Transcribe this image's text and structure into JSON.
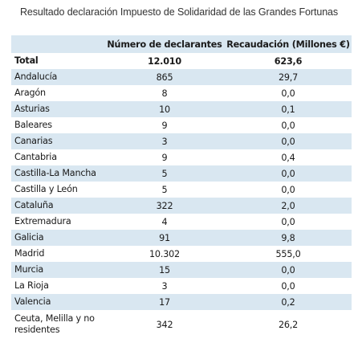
{
  "title": "Resultado declaración Impuesto de Solidaridad de las Grandes Fortunas",
  "table": {
    "headers": {
      "region": "",
      "declarantes": "Número de declarantes",
      "recaudacion": "Recaudación (Millones €)"
    },
    "total": {
      "region": "Total",
      "declarantes": "12.010",
      "recaudacion": "623,6"
    },
    "rows": [
      {
        "region": "Andalucía",
        "declarantes": "865",
        "recaudacion": "29,7"
      },
      {
        "region": "Aragón",
        "declarantes": "8",
        "recaudacion": "0,0"
      },
      {
        "region": "Asturias",
        "declarantes": "10",
        "recaudacion": "0,1"
      },
      {
        "region": "Baleares",
        "declarantes": "9",
        "recaudacion": "0,0"
      },
      {
        "region": "Canarias",
        "declarantes": "3",
        "recaudacion": "0,0"
      },
      {
        "region": "Cantabria",
        "declarantes": "9",
        "recaudacion": "0,4"
      },
      {
        "region": "Castilla-La Mancha",
        "declarantes": "5",
        "recaudacion": "0,0"
      },
      {
        "region": "Castilla y León",
        "declarantes": "5",
        "recaudacion": "0,0"
      },
      {
        "region": "Cataluña",
        "declarantes": "322",
        "recaudacion": "2,0"
      },
      {
        "region": "Extremadura",
        "declarantes": "4",
        "recaudacion": "0,0"
      },
      {
        "region": "Galicia",
        "declarantes": "91",
        "recaudacion": "9,8"
      },
      {
        "region": "Madrid",
        "declarantes": "10.302",
        "recaudacion": "555,0"
      },
      {
        "region": "Murcia",
        "declarantes": "15",
        "recaudacion": "0,0"
      },
      {
        "region": "La Rioja",
        "declarantes": "3",
        "recaudacion": "0,0"
      },
      {
        "region": "Valencia",
        "declarantes": "17",
        "recaudacion": "0,2"
      },
      {
        "region": "Ceuta, Melilla y no residentes",
        "declarantes": "342",
        "recaudacion": "26,2"
      }
    ]
  },
  "colors": {
    "band": "#d9e7f1",
    "divider": "#b7cfe0",
    "text": "#1a1a1a"
  }
}
